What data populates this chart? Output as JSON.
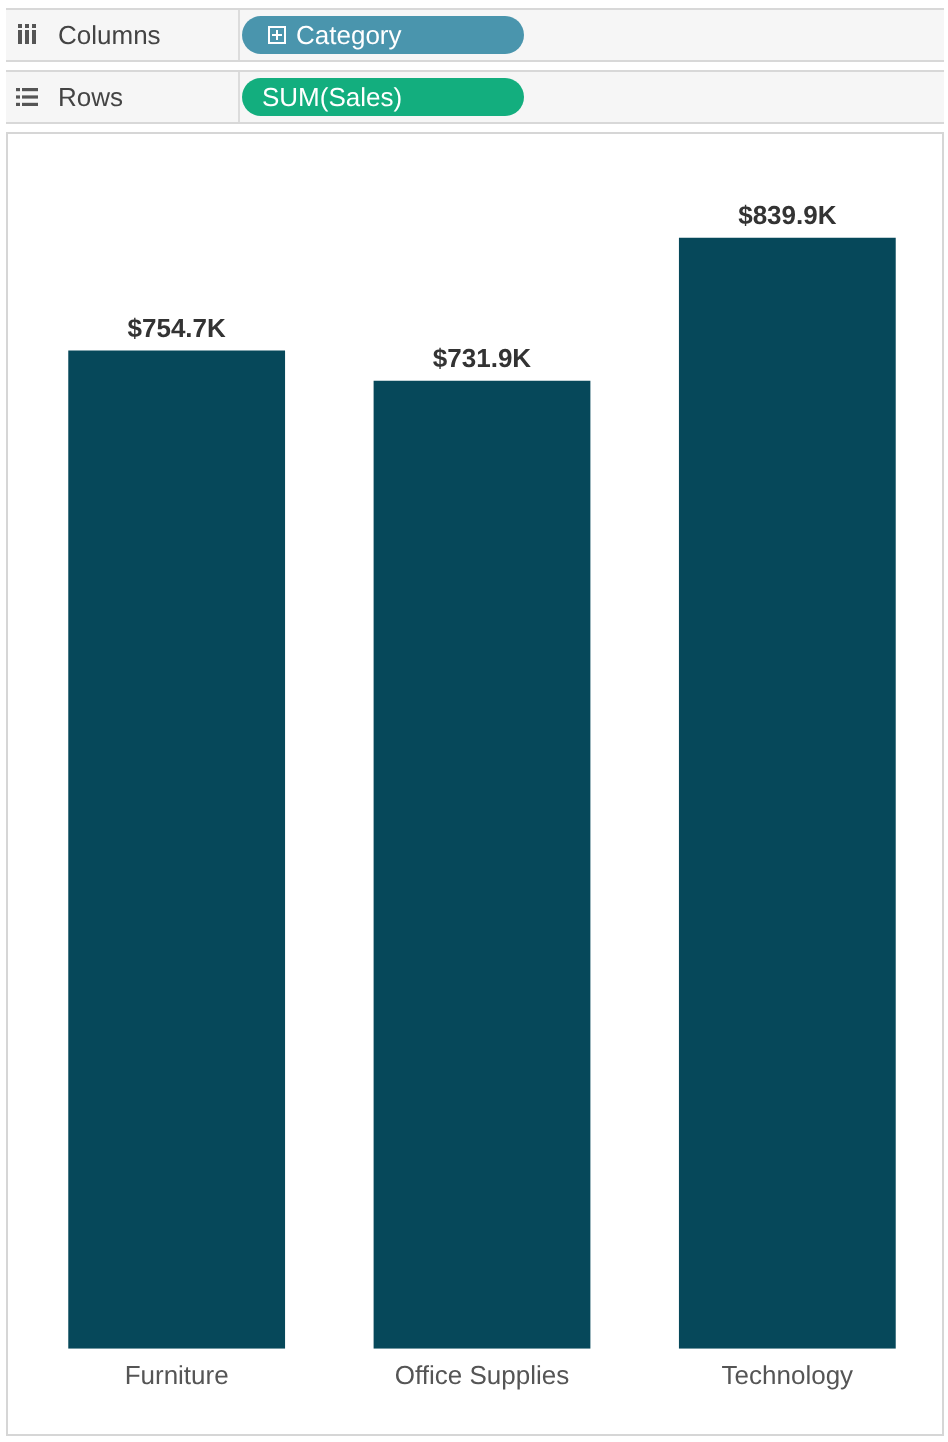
{
  "chart_data": {
    "type": "bar",
    "categories": [
      "Furniture",
      "Office Supplies",
      "Technology"
    ],
    "values": [
      754.7,
      731.9,
      839.9
    ],
    "value_labels": [
      "$754.7K",
      "$731.9K",
      "$839.9K"
    ],
    "color": "#06485a",
    "annotations": [
      "Columns",
      "Category",
      "Rows",
      "SUM(Sales)"
    ]
  }
}
